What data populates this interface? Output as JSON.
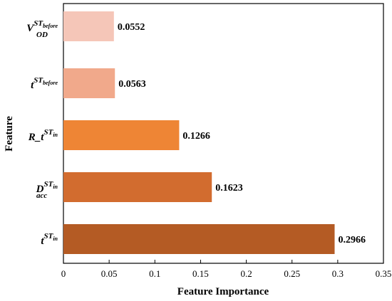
{
  "chart_data": {
    "type": "bar",
    "orientation": "horizontal",
    "categories": [
      {
        "base": "V",
        "sub": "OD",
        "sup_base": "ST",
        "sup_sub": "before"
      },
      {
        "base": "t",
        "sub": "",
        "sup_base": "ST",
        "sup_sub": "before"
      },
      {
        "base": "R_t",
        "sub": "",
        "sup_base": "ST",
        "sup_sub": "in"
      },
      {
        "base": "D",
        "sub": "acc",
        "sup_base": "ST",
        "sup_sub": "in"
      },
      {
        "base": "t",
        "sub": "",
        "sup_base": "ST",
        "sup_sub": "in"
      }
    ],
    "values": [
      0.0552,
      0.0563,
      0.1266,
      0.1623,
      0.2966
    ],
    "value_labels": [
      "0.0552",
      "0.0563",
      "0.1266",
      "0.1623",
      "0.2966"
    ],
    "bar_colors": [
      "#f5c6b8",
      "#f1a98b",
      "#ee8535",
      "#d26c2f",
      "#b45b24"
    ],
    "xlabel": "Feature Importance",
    "ylabel": "Feature",
    "xlim": [
      0,
      0.35
    ],
    "xticks": [
      "0",
      "0.05",
      "0.1",
      "0.15",
      "0.2",
      "0.25",
      "0.3",
      "0.35"
    ],
    "grid": false,
    "legend": "none"
  }
}
